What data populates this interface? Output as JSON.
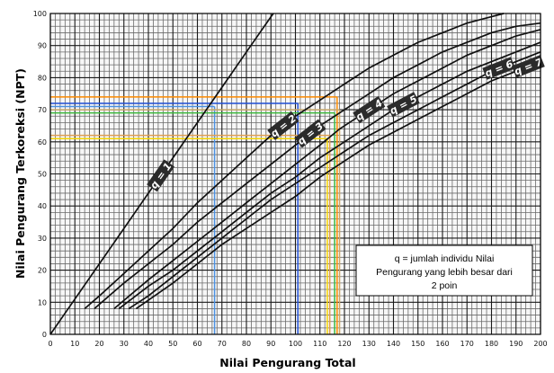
{
  "chart_data": {
    "type": "line",
    "xlabel": "Nilai Pengurang Total",
    "ylabel": "Nilai Pengurang Terkoreksi (NPT)",
    "xlim": [
      0,
      200
    ],
    "ylim": [
      0,
      100
    ],
    "x_ticks": [
      "0",
      "10",
      "20",
      "30",
      "40",
      "50",
      "60",
      "70",
      "80",
      "90",
      "100",
      "110",
      "120",
      "130",
      "140",
      "150",
      "160",
      "170",
      "180",
      "190",
      "200"
    ],
    "y_ticks": [
      "0",
      "10",
      "20",
      "30",
      "40",
      "50",
      "60",
      "70",
      "80",
      "90",
      "100"
    ],
    "grid": true,
    "series": [
      {
        "name": "q = 1",
        "color": "#111111",
        "points": [
          [
            0,
            0
          ],
          [
            10,
            11
          ],
          [
            20,
            22
          ],
          [
            30,
            33
          ],
          [
            40,
            44
          ],
          [
            50,
            55
          ],
          [
            60,
            66
          ],
          [
            70,
            77
          ],
          [
            80,
            88
          ],
          [
            90,
            99
          ],
          [
            91,
            100
          ]
        ]
      },
      {
        "name": "q = 2",
        "color": "#111111",
        "points": [
          [
            14,
            8
          ],
          [
            20,
            12
          ],
          [
            30,
            19
          ],
          [
            40,
            26
          ],
          [
            50,
            33
          ],
          [
            60,
            41
          ],
          [
            70,
            48
          ],
          [
            80,
            55
          ],
          [
            90,
            62
          ],
          [
            100,
            68
          ],
          [
            110,
            73
          ],
          [
            120,
            78
          ],
          [
            130,
            83
          ],
          [
            140,
            87
          ],
          [
            150,
            91
          ],
          [
            160,
            94
          ],
          [
            170,
            97
          ],
          [
            180,
            99
          ],
          [
            185,
            100
          ]
        ]
      },
      {
        "name": "q = 3",
        "color": "#111111",
        "points": [
          [
            18,
            8
          ],
          [
            30,
            16
          ],
          [
            40,
            22
          ],
          [
            50,
            28
          ],
          [
            60,
            35
          ],
          [
            70,
            41
          ],
          [
            80,
            47
          ],
          [
            90,
            53
          ],
          [
            100,
            59
          ],
          [
            110,
            65
          ],
          [
            120,
            70
          ],
          [
            130,
            75
          ],
          [
            140,
            80
          ],
          [
            150,
            84
          ],
          [
            160,
            88
          ],
          [
            170,
            91
          ],
          [
            180,
            94
          ],
          [
            190,
            96
          ],
          [
            200,
            97
          ]
        ]
      },
      {
        "name": "q = 4",
        "color": "#111111",
        "points": [
          [
            26,
            8
          ],
          [
            40,
            17
          ],
          [
            50,
            23
          ],
          [
            60,
            29
          ],
          [
            70,
            35
          ],
          [
            80,
            41
          ],
          [
            90,
            47
          ],
          [
            100,
            53
          ],
          [
            110,
            59
          ],
          [
            118,
            64
          ],
          [
            130,
            70
          ],
          [
            140,
            75
          ],
          [
            150,
            79
          ],
          [
            160,
            83
          ],
          [
            170,
            87
          ],
          [
            180,
            90
          ],
          [
            190,
            93
          ],
          [
            200,
            95
          ]
        ]
      },
      {
        "name": "q = 5",
        "color": "#111111",
        "points": [
          [
            28,
            8
          ],
          [
            40,
            15
          ],
          [
            50,
            20
          ],
          [
            60,
            26
          ],
          [
            70,
            32
          ],
          [
            80,
            38
          ],
          [
            90,
            44
          ],
          [
            100,
            49
          ],
          [
            110,
            55
          ],
          [
            120,
            60
          ],
          [
            130,
            65
          ],
          [
            140,
            70
          ],
          [
            150,
            74
          ],
          [
            160,
            78
          ],
          [
            170,
            82
          ],
          [
            180,
            85
          ],
          [
            190,
            88
          ],
          [
            200,
            91
          ]
        ]
      },
      {
        "name": "q = 6",
        "color": "#111111",
        "points": [
          [
            32,
            8
          ],
          [
            40,
            12
          ],
          [
            50,
            18
          ],
          [
            60,
            24
          ],
          [
            70,
            30
          ],
          [
            80,
            36
          ],
          [
            90,
            42
          ],
          [
            100,
            47
          ],
          [
            110,
            52
          ],
          [
            120,
            57
          ],
          [
            130,
            62
          ],
          [
            140,
            66
          ],
          [
            150,
            70
          ],
          [
            160,
            74
          ],
          [
            170,
            78
          ],
          [
            180,
            82
          ],
          [
            190,
            85
          ],
          [
            200,
            88
          ]
        ]
      },
      {
        "name": "q = 7",
        "color": "#111111",
        "points": [
          [
            35,
            8
          ],
          [
            50,
            16
          ],
          [
            60,
            22
          ],
          [
            70,
            28
          ],
          [
            80,
            33
          ],
          [
            90,
            38
          ],
          [
            100,
            43
          ],
          [
            110,
            49
          ],
          [
            120,
            54
          ],
          [
            130,
            59
          ],
          [
            140,
            63
          ],
          [
            150,
            67
          ],
          [
            160,
            71
          ],
          [
            170,
            75
          ],
          [
            180,
            79
          ],
          [
            190,
            82
          ],
          [
            200,
            85
          ]
        ]
      }
    ],
    "reference_lines": [
      {
        "color": "#4a90e2",
        "x": 67,
        "y": 71
      },
      {
        "color": "#1f4fd6",
        "x": 101,
        "y": 72
      },
      {
        "color": "#f5d400",
        "x": 113,
        "y": 61
      },
      {
        "color": "#3cb83c",
        "x": 116,
        "y": 69
      },
      {
        "color": "#ff8c00",
        "x": 117,
        "y": 74
      },
      {
        "color": "#c8a86a",
        "x": 118,
        "y": 70
      },
      {
        "color": "#e0a050",
        "x": 114,
        "y": 62
      }
    ],
    "annotation": {
      "lines": [
        "q = jumlah individu Nilai",
        "Pengurang yang lebih besar dari",
        "2 poin"
      ]
    }
  }
}
